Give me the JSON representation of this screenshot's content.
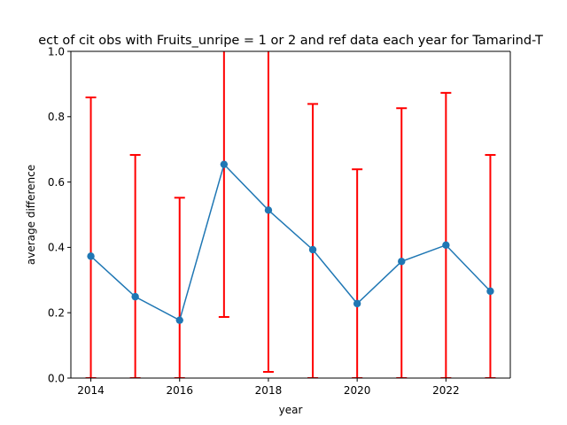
{
  "chart_data": {
    "type": "line",
    "title": "ect of cit obs with Fruits_unripe = 1 or 2 and ref data each year for Tamarind-T",
    "xlabel": "year",
    "ylabel": "average difference",
    "xlim": [
      2013.55,
      2023.45
    ],
    "ylim": [
      0,
      1
    ],
    "x_ticks": [
      2014,
      2016,
      2018,
      2020,
      2022
    ],
    "y_ticks": [
      0.0,
      0.2,
      0.4,
      0.6,
      0.8,
      1.0
    ],
    "x_tick_labels": [
      "2014",
      "2016",
      "2018",
      "2020",
      "2022"
    ],
    "y_tick_labels": [
      "0.0",
      "0.2",
      "0.4",
      "0.6",
      "0.8",
      "1.0"
    ],
    "grid": false,
    "series": [
      {
        "x": [
          2014,
          2015,
          2016,
          2017,
          2018,
          2019,
          2020,
          2021,
          2022,
          2023
        ],
        "values": [
          0.373,
          0.249,
          0.177,
          0.654,
          0.514,
          0.393,
          0.228,
          0.357,
          0.407,
          0.266
        ],
        "err_low": [
          0.0,
          0.0,
          0.0,
          0.187,
          0.019,
          0.0,
          0.0,
          0.0,
          0.0,
          0.0
        ],
        "err_high": [
          0.859,
          0.683,
          0.552,
          1.121,
          1.009,
          0.839,
          0.639,
          0.826,
          0.873,
          0.683
        ],
        "color": "#1f77b4",
        "error_color": "#ff0000"
      }
    ]
  }
}
